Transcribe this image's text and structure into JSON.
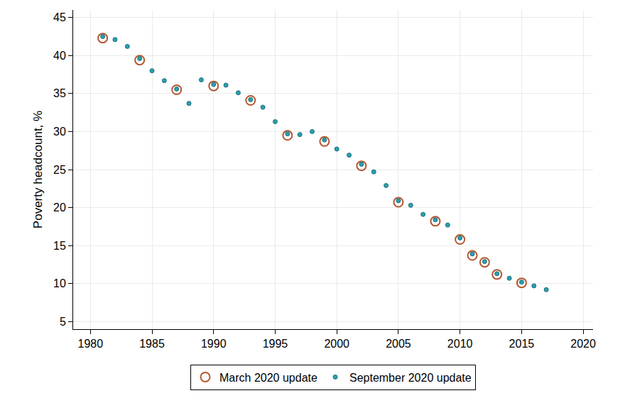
{
  "chart_data": {
    "type": "scatter",
    "y_label": "Poverty headcount, %",
    "xlim": [
      1978.6,
      2020.8
    ],
    "xticks": [
      1980,
      1985,
      1990,
      1995,
      2000,
      2005,
      2010,
      2015,
      2020
    ],
    "ylim": [
      4,
      46
    ],
    "yticks": [
      5,
      10,
      15,
      20,
      25,
      30,
      35,
      40,
      45
    ],
    "grid": true,
    "legend": "bottom",
    "series": [
      {
        "name": "March 2020 update",
        "color": "#b5562e",
        "marker": "circle-open",
        "x": [
          1981,
          1984,
          1987,
          1990,
          1993,
          1996,
          1999,
          2002,
          2005,
          2008,
          2010,
          2011,
          2012,
          2013,
          2015
        ],
        "values": [
          42.3,
          39.4,
          35.5,
          36.0,
          34.1,
          29.5,
          28.7,
          25.5,
          20.7,
          18.2,
          15.8,
          13.7,
          12.8,
          11.2,
          10.1
        ]
      },
      {
        "name": "September 2020 update",
        "color": "#2a9fb0",
        "marker": "circle",
        "x": [
          1981,
          1982,
          1983,
          1984,
          1985,
          1986,
          1987,
          1988,
          1989,
          1990,
          1991,
          1992,
          1993,
          1994,
          1995,
          1996,
          1997,
          1998,
          1999,
          2000,
          2001,
          2002,
          2003,
          2004,
          2005,
          2006,
          2007,
          2008,
          2009,
          2010,
          2011,
          2012,
          2013,
          2014,
          2015,
          2016,
          2017
        ],
        "values": [
          42.5,
          42.1,
          41.2,
          39.6,
          38.0,
          36.7,
          35.6,
          33.7,
          36.8,
          36.2,
          36.1,
          35.1,
          34.2,
          33.2,
          31.3,
          29.7,
          29.6,
          30.0,
          28.9,
          27.7,
          26.9,
          25.7,
          24.7,
          22.9,
          20.9,
          20.3,
          19.1,
          18.4,
          17.7,
          16.0,
          13.9,
          12.9,
          11.3,
          10.7,
          10.2,
          9.7,
          9.2
        ]
      }
    ]
  }
}
